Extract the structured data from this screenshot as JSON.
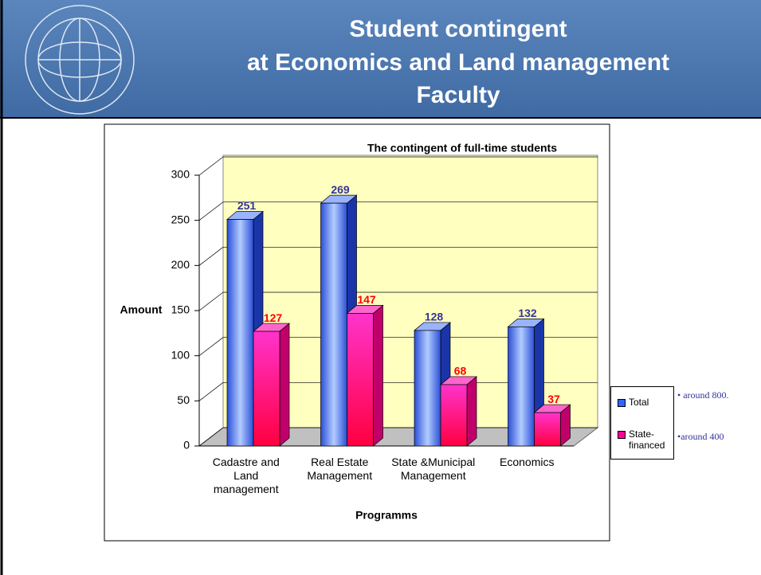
{
  "header": {
    "title": [
      "Student contingent",
      "at Economics and Land management",
      "Faculty"
    ]
  },
  "chart_data": {
    "type": "bar3d",
    "title": "The contingent of full-time students",
    "xlabel": "Programms",
    "ylabel": "Amount",
    "categories": [
      "Cadastre and Land management",
      "Real Estate Management",
      "State &Municipal Management",
      "Economics"
    ],
    "series": [
      {
        "name": "Total",
        "color": "#3366ff",
        "values": [
          251,
          269,
          128,
          132
        ]
      },
      {
        "name": "State-financed",
        "color": "#ff0099",
        "values": [
          127,
          147,
          68,
          37
        ]
      }
    ],
    "value_label_colors": [
      "#333399",
      "#ff0000"
    ],
    "ylim": [
      0,
      300
    ],
    "yticks": [
      0,
      50,
      100,
      150,
      200,
      250,
      300
    ],
    "grid": true,
    "annotations": [
      "• around 800.",
      "•around 400"
    ]
  }
}
